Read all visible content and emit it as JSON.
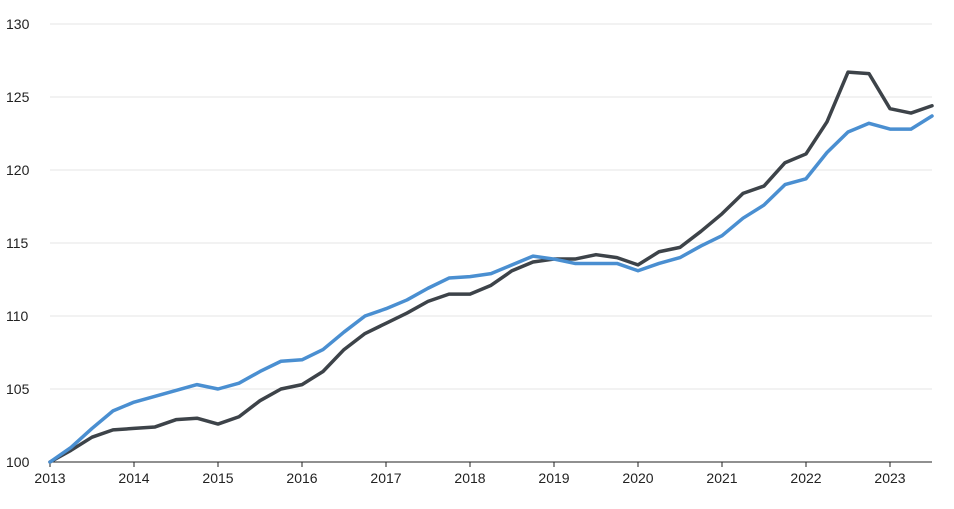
{
  "chart_data": {
    "type": "line",
    "title": "",
    "xlabel": "",
    "ylabel": "",
    "xlim": [
      2013.0,
      2023.5
    ],
    "ylim": [
      100,
      130
    ],
    "y_ticks": [
      100,
      105,
      110,
      115,
      120,
      125,
      130
    ],
    "y_tick_labels": [
      "100",
      "105",
      "110",
      "115",
      "120",
      "125",
      "130"
    ],
    "x_ticks": [
      2013,
      2014,
      2015,
      2016,
      2017,
      2018,
      2019,
      2020,
      2021,
      2022,
      2023
    ],
    "x_tick_labels": [
      "2013",
      "2014",
      "2015",
      "2016",
      "2017",
      "2018",
      "2019",
      "2020",
      "2021",
      "2022",
      "2023"
    ],
    "grid": "horizontal",
    "legend": "none",
    "series": [
      {
        "color": "#3d4349",
        "x": [
          2013.0,
          2013.25,
          2013.5,
          2013.75,
          2014.0,
          2014.25,
          2014.5,
          2014.75,
          2015.0,
          2015.25,
          2015.5,
          2015.75,
          2016.0,
          2016.25,
          2016.5,
          2016.75,
          2017.0,
          2017.25,
          2017.5,
          2017.75,
          2018.0,
          2018.25,
          2018.5,
          2018.75,
          2019.0,
          2019.25,
          2019.5,
          2019.75,
          2020.0,
          2020.25,
          2020.5,
          2020.75,
          2021.0,
          2021.25,
          2021.5,
          2021.75,
          2022.0,
          2022.25,
          2022.5,
          2022.75,
          2023.0,
          2023.25,
          2023.5
        ],
        "values": [
          100.0,
          100.8,
          101.7,
          102.2,
          102.3,
          102.4,
          102.9,
          103.0,
          102.6,
          103.1,
          104.2,
          105.0,
          105.3,
          106.2,
          107.7,
          108.8,
          109.5,
          110.2,
          111.0,
          111.5,
          111.5,
          112.1,
          113.1,
          113.7,
          113.9,
          113.9,
          114.2,
          114.0,
          113.5,
          114.4,
          114.7,
          115.8,
          117.0,
          118.4,
          118.9,
          120.5,
          121.1,
          123.3,
          126.7,
          126.6,
          124.2,
          123.9,
          124.4
        ]
      },
      {
        "color": "#4a8fd1",
        "x": [
          2013.0,
          2013.25,
          2013.5,
          2013.75,
          2014.0,
          2014.25,
          2014.5,
          2014.75,
          2015.0,
          2015.25,
          2015.5,
          2015.75,
          2016.0,
          2016.25,
          2016.5,
          2016.75,
          2017.0,
          2017.25,
          2017.5,
          2017.75,
          2018.0,
          2018.25,
          2018.5,
          2018.75,
          2019.0,
          2019.25,
          2019.5,
          2019.75,
          2020.0,
          2020.25,
          2020.5,
          2020.75,
          2021.0,
          2021.25,
          2021.5,
          2021.75,
          2022.0,
          2022.25,
          2022.5,
          2022.75,
          2023.0,
          2023.25,
          2023.5
        ],
        "values": [
          100.0,
          101.0,
          102.3,
          103.5,
          104.1,
          104.5,
          104.9,
          105.3,
          105.0,
          105.4,
          106.2,
          106.9,
          107.0,
          107.7,
          108.9,
          110.0,
          110.5,
          111.1,
          111.9,
          112.6,
          112.7,
          112.9,
          113.5,
          114.1,
          113.9,
          113.6,
          113.6,
          113.6,
          113.1,
          113.6,
          114.0,
          114.8,
          115.5,
          116.7,
          117.6,
          119.0,
          119.4,
          121.2,
          122.6,
          123.2,
          122.8,
          122.8,
          123.7
        ]
      }
    ]
  }
}
